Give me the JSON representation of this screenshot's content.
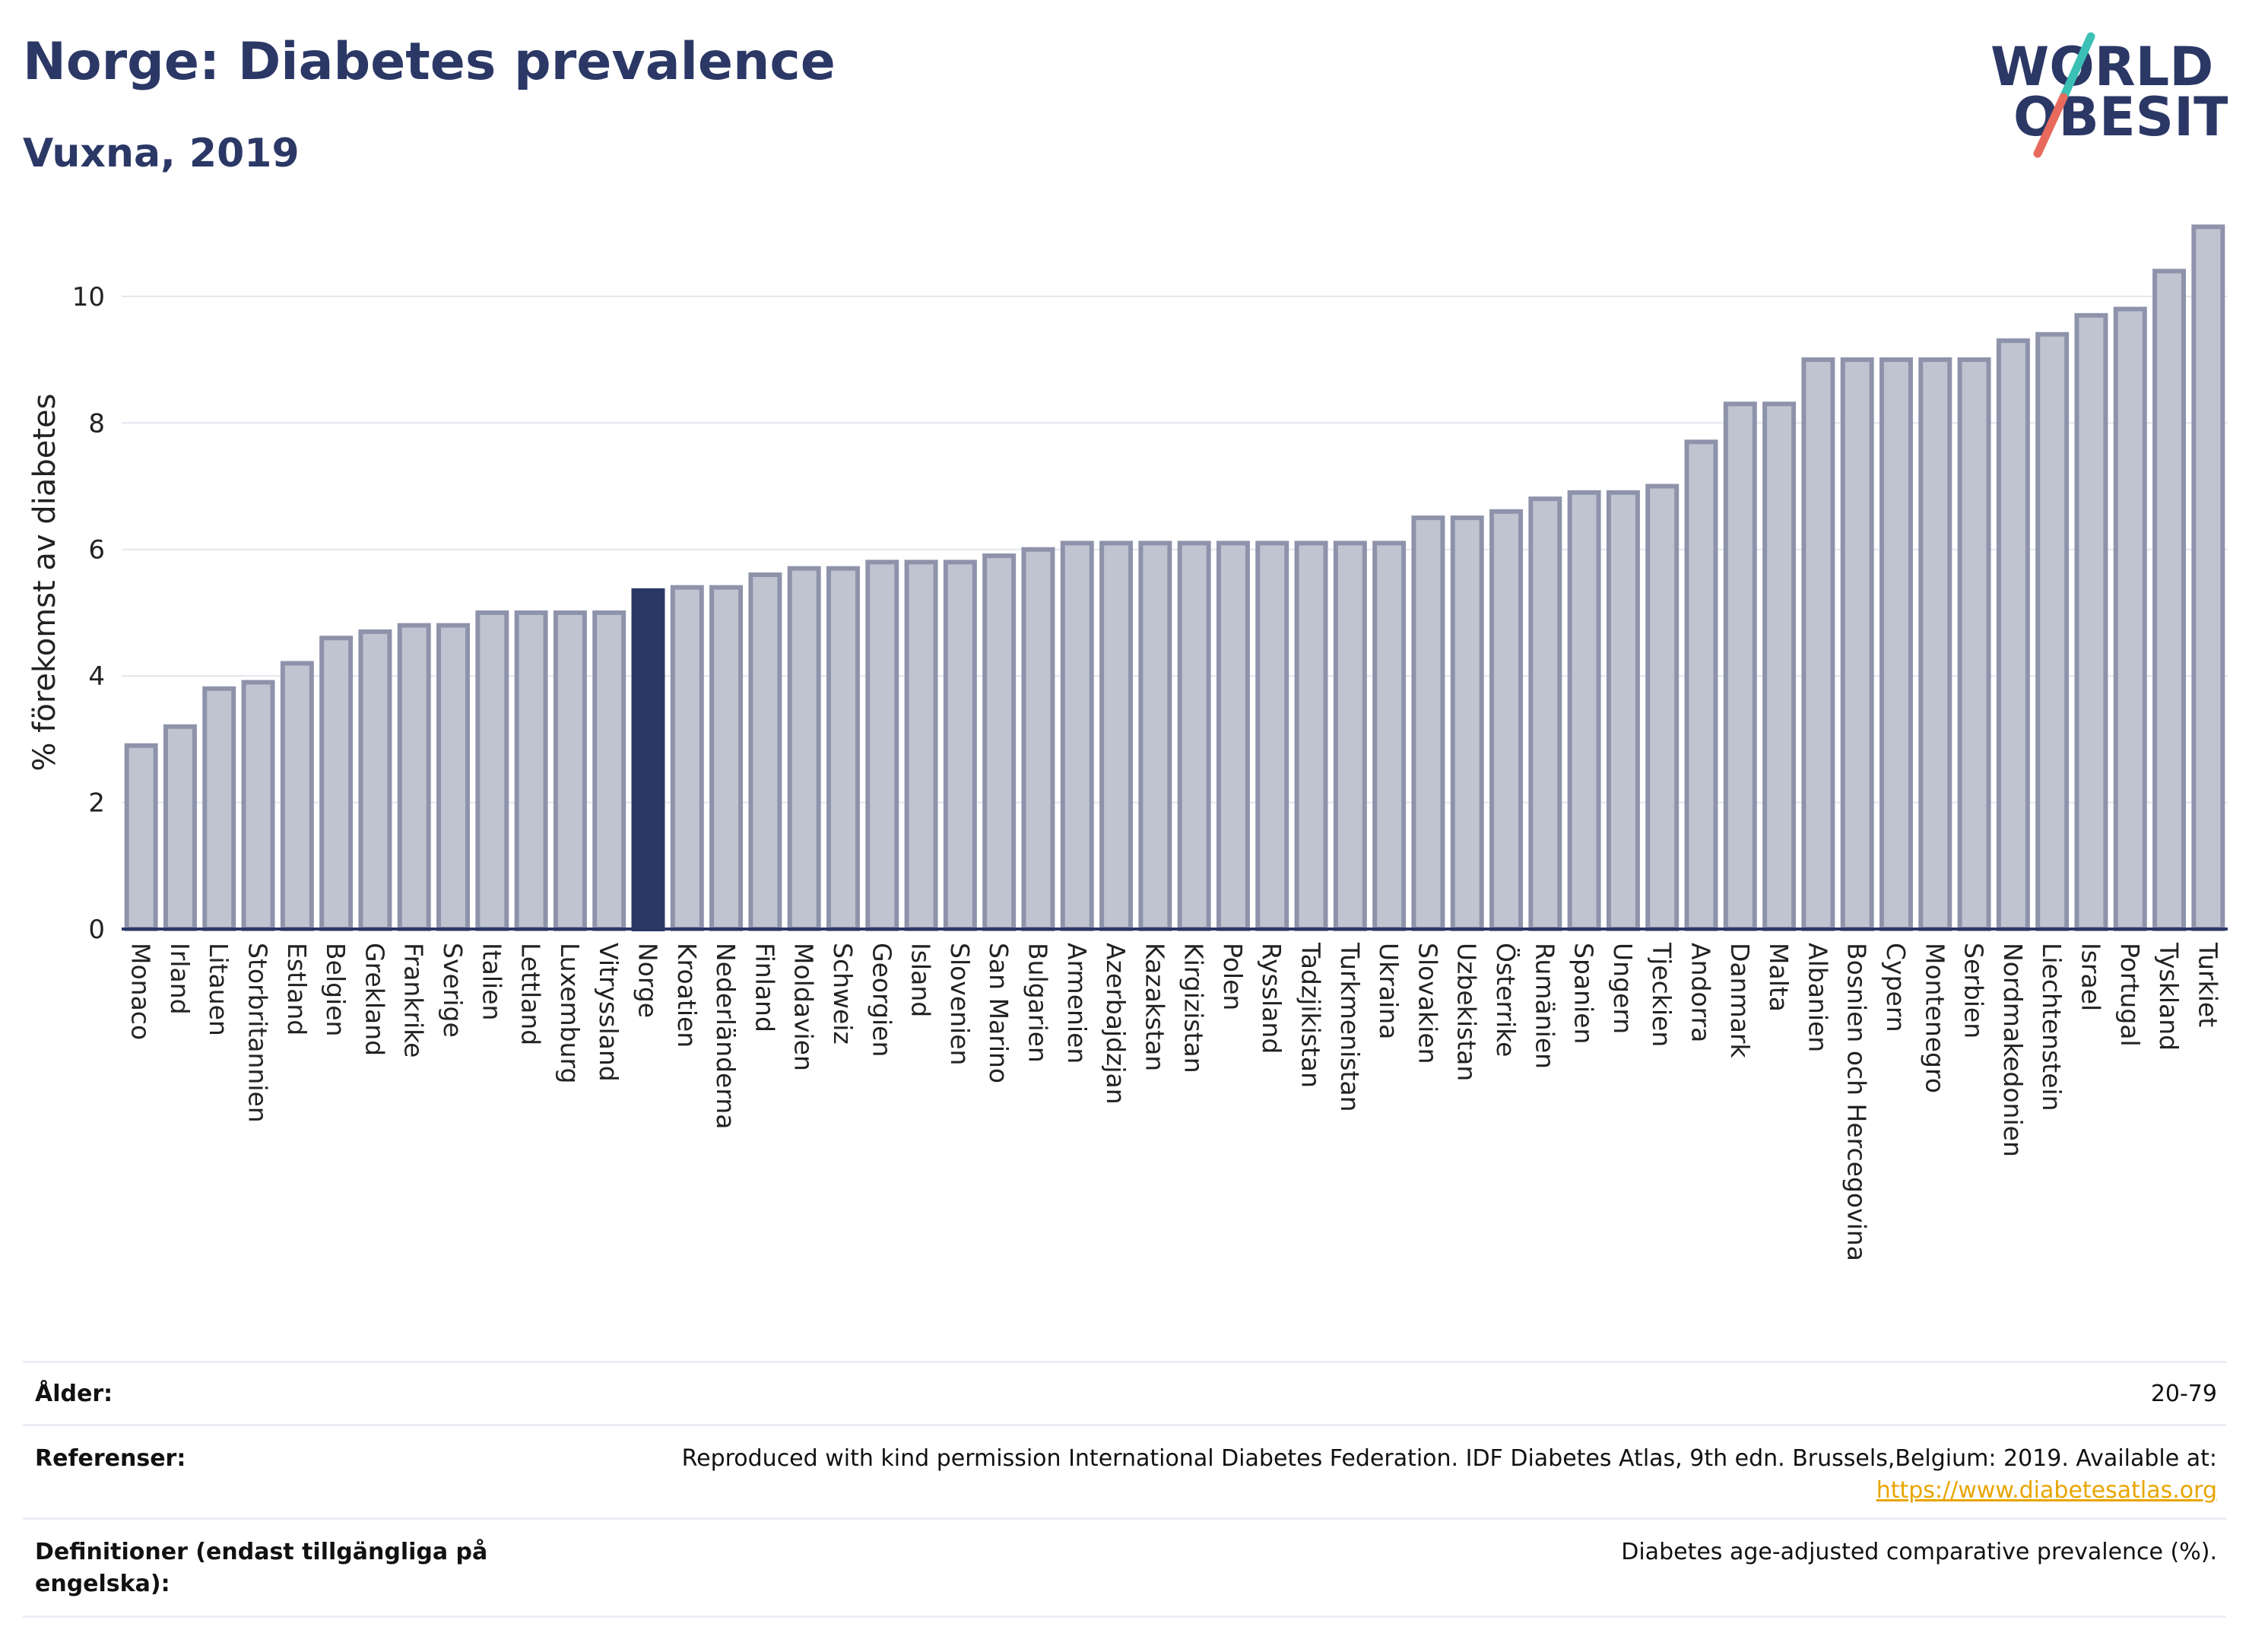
{
  "header": {
    "title": "Norge: Diabetes prevalence",
    "subtitle": "Vuxna, 2019",
    "logo_line1": "WORLD",
    "logo_line2": "OBESITY"
  },
  "colors": {
    "brand": "#2b3866",
    "bar": "#c0c4d1",
    "bar_outline": "#8e93ab",
    "highlight": "#2b3866",
    "logo_teal": "#3cc0b5",
    "logo_coral": "#e86a5c",
    "link": "#e8a500"
  },
  "chart_data": {
    "type": "bar",
    "title": "Norge: Diabetes prevalence",
    "subtitle": "Vuxna, 2019",
    "ylabel": "% förekomst av diabetes",
    "xlabel": "",
    "ylim": [
      0,
      11.2
    ],
    "yticks": [
      0,
      2,
      4,
      6,
      8,
      10
    ],
    "grid": true,
    "highlight_category": "Norge",
    "categories": [
      "Monaco",
      "Irland",
      "Litauen",
      "Storbritannien",
      "Estland",
      "Belgien",
      "Grekland",
      "Frankrike",
      "Sverige",
      "Italien",
      "Lettland",
      "Luxemburg",
      "Vitryssland",
      "Norge",
      "Kroatien",
      "Nederländerna",
      "Finland",
      "Moldavien",
      "Schweiz",
      "Georgien",
      "Island",
      "Slovenien",
      "San Marino",
      "Bulgarien",
      "Armenien",
      "Azerbajdzjan",
      "Kazakstan",
      "Kirgizistan",
      "Polen",
      "Ryssland",
      "Tadzjikistan",
      "Turkmenistan",
      "Ukraina",
      "Slovakien",
      "Uzbekistan",
      "Österrike",
      "Rumänien",
      "Spanien",
      "Ungern",
      "Tjeckien",
      "Andorra",
      "Danmark",
      "Malta",
      "Albanien",
      "Bosnien och Hercegovina",
      "Cypern",
      "Montenegro",
      "Serbien",
      "Nordmakedonien",
      "Liechtenstein",
      "Israel",
      "Portugal",
      "Tyskland",
      "Turkiet"
    ],
    "values": [
      2.9,
      3.2,
      3.8,
      3.9,
      4.2,
      4.6,
      4.7,
      4.8,
      4.8,
      5.0,
      5.0,
      5.0,
      5.0,
      5.35,
      5.4,
      5.4,
      5.6,
      5.7,
      5.7,
      5.8,
      5.8,
      5.8,
      5.9,
      6.0,
      6.1,
      6.1,
      6.1,
      6.1,
      6.1,
      6.1,
      6.1,
      6.1,
      6.1,
      6.5,
      6.5,
      6.6,
      6.8,
      6.9,
      6.9,
      7.0,
      7.7,
      8.3,
      8.3,
      9.0,
      9.0,
      9.0,
      9.0,
      9.0,
      9.3,
      9.4,
      9.7,
      9.8,
      10.4,
      11.1
    ]
  },
  "info": {
    "age_label": "Ålder:",
    "age_value": "20-79",
    "refs_label": "Referenser:",
    "refs_text": "Reproduced with kind permission International Diabetes Federation. IDF Diabetes Atlas, 9th edn. Brussels,Belgium: 2019. Available at:",
    "refs_link": "https://www.diabetesatlas.org",
    "defs_label_line1": "Definitioner (endast tillgängliga på",
    "defs_label_line2": "engelska):",
    "defs_value": "Diabetes age-adjusted comparative prevalence (%)."
  }
}
